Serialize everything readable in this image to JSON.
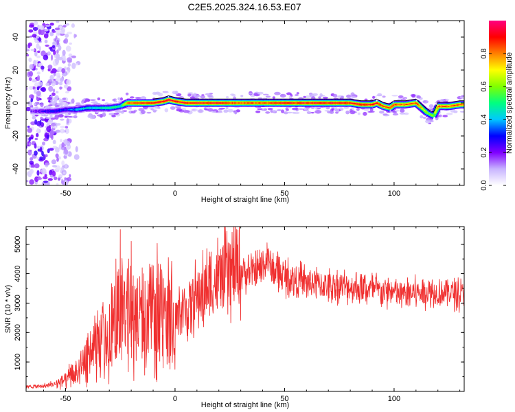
{
  "title": "C2E5.2025.324.16.53.E07",
  "colors": {
    "snr_line": "#f03030",
    "frame": "#000000",
    "colorbar_stops": [
      "#ffffff",
      "#c8b4ff",
      "#8000ff",
      "#0000ff",
      "#00c8ff",
      "#00ff80",
      "#80ff00",
      "#ffff00",
      "#ff8000",
      "#ff0000",
      "#ff0080"
    ]
  },
  "chart_data": [
    {
      "type": "heatmap",
      "xlabel": "Height of straight line (km)",
      "ylabel": "Frequency (Hz)",
      "xlim": [
        -68,
        132
      ],
      "ylim": [
        -50,
        50
      ],
      "x_ticks": [
        -50,
        0,
        50,
        100
      ],
      "y_ticks": [
        -40,
        -20,
        0,
        20,
        40
      ],
      "ridge": {
        "x": [
          -65,
          -60,
          -55,
          -50,
          -45,
          -40,
          -35,
          -30,
          -25,
          -22,
          -20,
          -15,
          -10,
          -5,
          -3,
          0,
          5,
          10,
          20,
          30,
          40,
          50,
          60,
          70,
          75,
          80,
          85,
          90,
          92,
          95,
          98,
          100,
          105,
          110,
          115,
          118,
          120,
          125,
          130
        ],
        "y": [
          -5,
          -5,
          -5,
          -4,
          -4,
          -3,
          -3,
          -3,
          -2,
          0,
          0,
          0,
          0,
          1,
          2,
          1,
          0,
          0,
          0,
          0,
          0,
          0,
          0,
          0,
          0,
          0,
          -1,
          -1,
          0,
          -2,
          -3,
          -1,
          -1,
          0,
          -6,
          -8,
          -2,
          -2,
          -1
        ],
        "amplitude": [
          0.2,
          0.25,
          0.3,
          0.3,
          0.4,
          0.45,
          0.45,
          0.5,
          0.5,
          0.8,
          0.85,
          0.9,
          0.9,
          0.9,
          0.95,
          0.9,
          0.9,
          0.9,
          0.9,
          0.85,
          0.85,
          0.9,
          0.9,
          0.9,
          0.9,
          0.9,
          0.9,
          0.9,
          0.9,
          0.85,
          0.85,
          0.85,
          0.85,
          0.85,
          0.6,
          0.6,
          0.85,
          0.85,
          0.85
        ]
      },
      "colorbar": {
        "label": "Normalized spectral amplitude",
        "range": [
          0,
          1
        ],
        "ticks": [
          "0.0",
          "0.2",
          "0.4",
          "0.6",
          "0.8"
        ]
      }
    },
    {
      "type": "line",
      "xlabel": "Height of straight line (km)",
      "ylabel": "SNR (10 * v/v)",
      "xlim": [
        -68,
        132
      ],
      "ylim": [
        0,
        5600
      ],
      "x_ticks": [
        -50,
        0,
        50,
        100
      ],
      "y_ticks": [
        1000,
        2000,
        3000,
        4000,
        5000
      ],
      "series": [
        {
          "x": [
            -68,
            -60,
            -55,
            -50,
            -45,
            -40,
            -35,
            -30,
            -27,
            -25,
            -23,
            -20,
            -15,
            -10,
            -5,
            0,
            5,
            10,
            15,
            20,
            25,
            30,
            35,
            40,
            42,
            45,
            50,
            55,
            60,
            65,
            70,
            75,
            80,
            85,
            90,
            95,
            100,
            105,
            110,
            115,
            120,
            125,
            130,
            132
          ],
          "values": [
            150,
            180,
            250,
            400,
            700,
            1200,
            1600,
            2000,
            2400,
            3400,
            2500,
            2400,
            2600,
            2800,
            2600,
            2500,
            2800,
            3200,
            3500,
            3800,
            4000,
            4100,
            4000,
            4200,
            4500,
            4100,
            3900,
            3800,
            3700,
            3650,
            3600,
            3600,
            3550,
            3500,
            3450,
            3400,
            3350,
            3300,
            3350,
            3400,
            3350,
            3400,
            3300,
            3300
          ],
          "peaks": [
            [
              -25,
              5500
            ],
            [
              -20,
              5100
            ],
            [
              -27,
              4500
            ],
            [
              -15,
              4200
            ],
            [
              42,
              5050
            ]
          ]
        }
      ]
    }
  ]
}
